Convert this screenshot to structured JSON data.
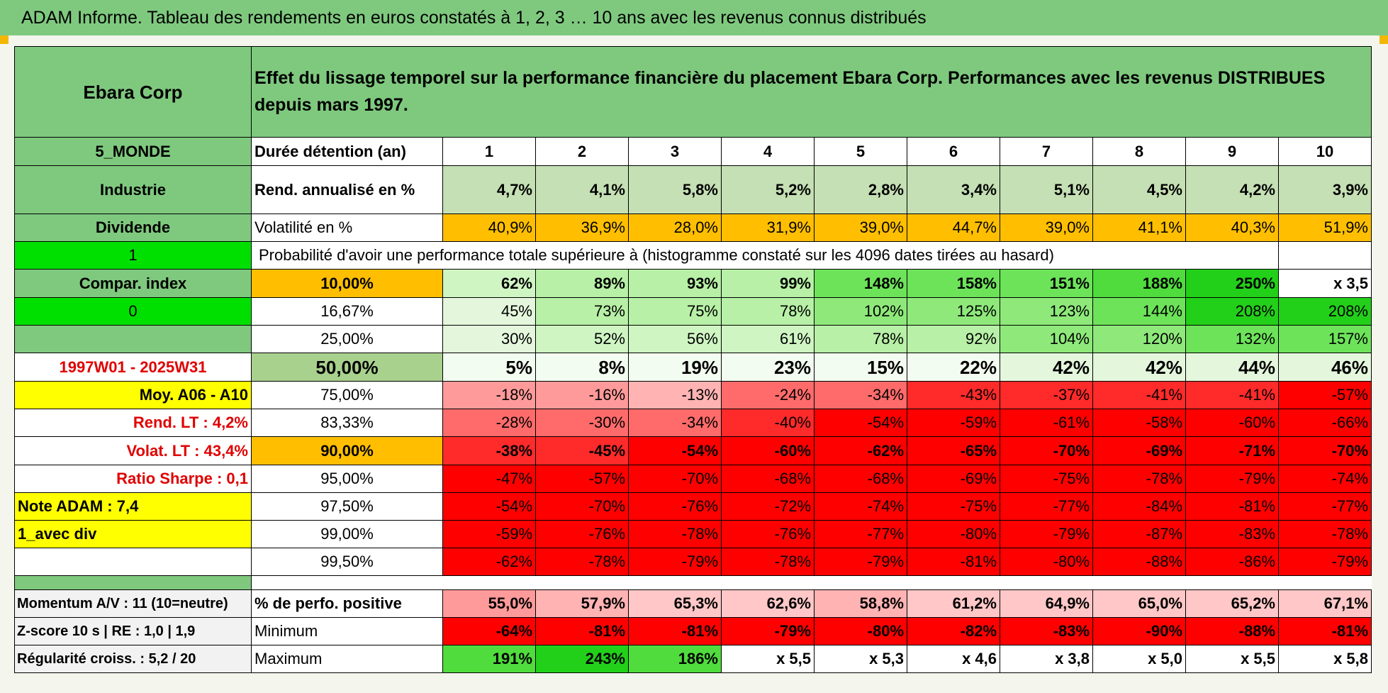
{
  "title": "ADAM Informe. Tableau des rendements en euros constatés à 1, 2, 3 … 10 ans avec les revenus connus distribués",
  "stock_name": "Ebara Corp",
  "description": "Effet du lissage temporel sur la performance financière du placement Ebara Corp. Performances avec les revenus DISTRIBUES depuis mars 1997.",
  "left": {
    "region": "5_MONDE",
    "sector": "Industrie",
    "dividend": "Dividende",
    "flag1": "1",
    "compar": "Compar. index",
    "flag0": "0",
    "period": "1997W01 - 2025W31",
    "moy": "Moy. A06 - A10",
    "rend_lt": "Rend. LT :    4,2%",
    "volat_lt": "Volat. LT :    43,4%",
    "sharpe": "Ratio Sharpe :     0,1",
    "note": "Note ADAM : 7,4",
    "avec_div": "1_avec div",
    "momentum": "Momentum A/V : 11 (10=neutre)",
    "zscore": "Z-score 10 s | RE : 1,0  | 1,9",
    "regularite": "Régularité croiss. : 5,2 / 20"
  },
  "duration_label": "Durée détention (an)",
  "years": [
    "1",
    "2",
    "3",
    "4",
    "5",
    "6",
    "7",
    "8",
    "9",
    "10"
  ],
  "rend_label": "Rend. annualisé en %",
  "rend": [
    "4,7%",
    "4,1%",
    "5,8%",
    "5,2%",
    "2,8%",
    "3,4%",
    "5,1%",
    "4,5%",
    "4,2%",
    "3,9%"
  ],
  "vol_label": "Volatilité en %",
  "vol": [
    "40,9%",
    "36,9%",
    "28,0%",
    "31,9%",
    "39,0%",
    "44,7%",
    "39,0%",
    "41,1%",
    "40,3%",
    "51,9%"
  ],
  "prob_label": "Probabilité d'avoir une performance totale supérieure à (histogramme constaté sur les 4096 dates tirées au hasard)",
  "prob_rows": [
    {
      "pct": "10,00%",
      "values": [
        "62%",
        "89%",
        "93%",
        "99%",
        "148%",
        "158%",
        "151%",
        "188%",
        "250%",
        "x 3,5"
      ]
    },
    {
      "pct": "16,67%",
      "values": [
        "45%",
        "73%",
        "75%",
        "78%",
        "102%",
        "125%",
        "123%",
        "144%",
        "208%",
        "208%"
      ]
    },
    {
      "pct": "25,00%",
      "values": [
        "30%",
        "52%",
        "56%",
        "61%",
        "78%",
        "92%",
        "104%",
        "120%",
        "132%",
        "157%"
      ]
    },
    {
      "pct": "50,00%",
      "values": [
        "5%",
        "8%",
        "19%",
        "23%",
        "15%",
        "22%",
        "42%",
        "42%",
        "44%",
        "46%"
      ]
    },
    {
      "pct": "75,00%",
      "values": [
        "-18%",
        "-16%",
        "-13%",
        "-24%",
        "-34%",
        "-43%",
        "-37%",
        "-41%",
        "-41%",
        "-57%"
      ]
    },
    {
      "pct": "83,33%",
      "values": [
        "-28%",
        "-30%",
        "-34%",
        "-40%",
        "-54%",
        "-59%",
        "-61%",
        "-58%",
        "-60%",
        "-66%"
      ]
    },
    {
      "pct": "90,00%",
      "values": [
        "-38%",
        "-45%",
        "-54%",
        "-60%",
        "-62%",
        "-65%",
        "-70%",
        "-69%",
        "-71%",
        "-70%"
      ]
    },
    {
      "pct": "95,00%",
      "values": [
        "-47%",
        "-57%",
        "-70%",
        "-68%",
        "-68%",
        "-69%",
        "-75%",
        "-78%",
        "-79%",
        "-74%"
      ]
    },
    {
      "pct": "97,50%",
      "values": [
        "-54%",
        "-70%",
        "-76%",
        "-72%",
        "-74%",
        "-75%",
        "-77%",
        "-84%",
        "-81%",
        "-77%"
      ]
    },
    {
      "pct": "99,00%",
      "values": [
        "-59%",
        "-76%",
        "-78%",
        "-76%",
        "-77%",
        "-80%",
        "-79%",
        "-87%",
        "-83%",
        "-78%"
      ]
    },
    {
      "pct": "99,50%",
      "values": [
        "-62%",
        "-78%",
        "-79%",
        "-78%",
        "-79%",
        "-81%",
        "-80%",
        "-88%",
        "-86%",
        "-79%"
      ]
    }
  ],
  "stats": [
    {
      "label": "% de perfo. positive",
      "values": [
        "55,0%",
        "57,9%",
        "65,3%",
        "62,6%",
        "58,8%",
        "61,2%",
        "64,9%",
        "65,0%",
        "65,2%",
        "67,1%"
      ]
    },
    {
      "label": "Minimum",
      "values": [
        "-64%",
        "-81%",
        "-81%",
        "-79%",
        "-80%",
        "-82%",
        "-83%",
        "-90%",
        "-88%",
        "-81%"
      ]
    },
    {
      "label": "Maximum",
      "values": [
        "191%",
        "243%",
        "186%",
        "x 5,5",
        "x 5,3",
        "x 4,6",
        "x 3,8",
        "x 5,0",
        "x 5,5",
        "x 5,8"
      ]
    }
  ],
  "colors": {
    "header_green": "#7fc97f",
    "orange": "#ffbf00",
    "yellow": "#ffff00",
    "bright_green": "#00e000",
    "red": "#ff0000"
  }
}
